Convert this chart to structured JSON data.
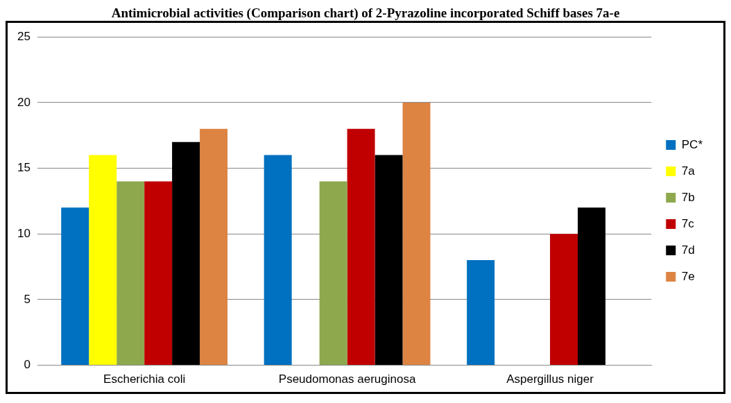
{
  "chart_data": {
    "type": "bar",
    "title": "Antimicrobial activities (Comparison chart) of 2-Pyrazoline incorporated Schiff bases 7a-e",
    "categories": [
      "Escherichia coli",
      "Pseudomonas aeruginosa",
      "Aspergillus niger"
    ],
    "series": [
      {
        "name": "PC*",
        "color": "#0070c0",
        "values": [
          12,
          16,
          8
        ]
      },
      {
        "name": "7a",
        "color": "#ffff00",
        "values": [
          16,
          null,
          null
        ]
      },
      {
        "name": "7b",
        "color": "#8ea84e",
        "values": [
          14,
          14,
          null
        ]
      },
      {
        "name": "7c",
        "color": "#c00000",
        "values": [
          14,
          18,
          10
        ]
      },
      {
        "name": "7d",
        "color": "#000000",
        "values": [
          17,
          16,
          12
        ]
      },
      {
        "name": "7e",
        "color": "#dd8443",
        "values": [
          18,
          20,
          null
        ]
      }
    ],
    "ylim": [
      0,
      25
    ],
    "yticks": [
      0,
      5,
      10,
      15,
      20,
      25
    ],
    "grid": "y",
    "legend": "right"
  }
}
